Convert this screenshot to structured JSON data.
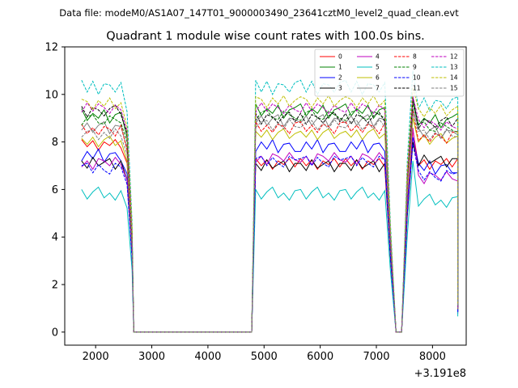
{
  "suptitle": "Data file: modeM0/AS1A07_147T01_9000003490_23641cztM0_level2_quad_clean.evt",
  "chart_data": {
    "type": "line",
    "title": "Quadrant 1 module wise count rates with 100.0s bins.",
    "xlabel": "",
    "ylabel": "",
    "x_offset_label": "+3.191e8",
    "xlim": [
      1450,
      8600
    ],
    "ylim": [
      -0.55,
      12
    ],
    "x_ticks": [
      2000,
      3000,
      4000,
      5000,
      6000,
      7000,
      8000
    ],
    "x_tick_labels": [
      "2000",
      "3000",
      "4000",
      "5000",
      "6000",
      "7000",
      "8000"
    ],
    "y_ticks": [
      0,
      2,
      4,
      6,
      8,
      10,
      12
    ],
    "y_tick_labels": [
      "0",
      "2",
      "4",
      "6",
      "8",
      "10",
      "12"
    ],
    "legend_position": "top-right",
    "segments": [
      {
        "x_start": 1750,
        "x_end": 2450,
        "step": 100
      },
      {
        "x_start": 4850,
        "x_end": 7150,
        "step": 100
      },
      {
        "x_start": 7650,
        "x_end": 8450,
        "step": 100
      }
    ],
    "gap_shape": [
      {
        "x": 2560,
        "factor": 0.9
      },
      {
        "x": 2650,
        "factor": 0.45
      },
      {
        "x": 2680,
        "factor": 0.0
      },
      {
        "x": 4780,
        "factor": 0.0
      },
      {
        "x": 7250,
        "factor": 0.45
      },
      {
        "x": 7350,
        "factor": 0.0
      },
      {
        "x": 7450,
        "factor": 0.0
      },
      {
        "x": 7550,
        "factor": 0.7
      },
      {
        "x": 8450,
        "factor": 0.12
      }
    ],
    "series": [
      {
        "name": "0",
        "color": "#ff0000",
        "dash": "solid",
        "level_a": 7.9,
        "level_b": 7.1,
        "level_c": 7.1,
        "peak": 8.5,
        "wobble": [
          0.2,
          -0.1,
          0.15,
          -0.25,
          0.1,
          -0.05,
          0.2,
          -0.15
        ]
      },
      {
        "name": "1",
        "color": "#008000",
        "dash": "solid",
        "level_a": 9.1,
        "level_b": 9.3,
        "level_c": 8.9,
        "peak": 9.8,
        "wobble": [
          0.3,
          -0.2,
          0.1,
          -0.1,
          0.25,
          -0.3,
          0.05,
          0.15
        ]
      },
      {
        "name": "2",
        "color": "#0000ff",
        "dash": "solid",
        "level_a": 7.4,
        "level_b": 7.8,
        "level_c": 6.9,
        "peak": 8.2,
        "wobble": [
          -0.2,
          0.2,
          -0.1,
          0.3,
          -0.25,
          0.1,
          0.15,
          -0.2
        ]
      },
      {
        "name": "3",
        "color": "#000000",
        "dash": "solid",
        "level_a": 7.1,
        "level_b": 7.0,
        "level_c": 7.2,
        "peak": 8.0,
        "wobble": [
          0.1,
          -0.2,
          0.25,
          -0.1,
          0.05,
          0.2,
          -0.25,
          0.1
        ]
      },
      {
        "name": "4",
        "color": "#bf00bf",
        "dash": "solid",
        "level_a": 7.1,
        "level_b": 7.3,
        "level_c": 6.5,
        "peak": 8.6,
        "wobble": [
          -0.15,
          0.1,
          -0.25,
          0.2,
          0.1,
          -0.1,
          0.25,
          -0.05
        ]
      },
      {
        "name": "5",
        "color": "#00bfbf",
        "dash": "solid",
        "level_a": 5.8,
        "level_b": 5.8,
        "level_c": 5.5,
        "peak": 7.2,
        "wobble": [
          0.2,
          -0.2,
          0.1,
          0.3,
          -0.15,
          0.05,
          -0.25,
          0.15
        ]
      },
      {
        "name": "6",
        "color": "#bfbf00",
        "dash": "solid",
        "level_a": 8.0,
        "level_b": 8.3,
        "level_c": 8.1,
        "peak": 9.0,
        "wobble": [
          0.15,
          -0.1,
          0.2,
          -0.2,
          0.1,
          0.25,
          -0.15,
          0.05
        ]
      },
      {
        "name": "7",
        "color": "#7f7f7f",
        "dash": "solid",
        "level_a": 8.6,
        "level_b": 8.9,
        "level_c": 8.4,
        "peak": 9.4,
        "wobble": [
          -0.1,
          0.2,
          -0.2,
          0.1,
          0.25,
          -0.25,
          0.1,
          0.05
        ]
      },
      {
        "name": "8",
        "color": "#ff0000",
        "dash": "dashed",
        "level_a": 8.5,
        "level_b": 8.6,
        "level_c": 8.2,
        "peak": 9.3,
        "wobble": [
          0.25,
          -0.15,
          0.1,
          -0.2,
          0.15,
          0.05,
          -0.25,
          0.2
        ]
      },
      {
        "name": "9",
        "color": "#008000",
        "dash": "dashed",
        "level_a": 8.9,
        "level_b": 9.1,
        "level_c": 8.6,
        "peak": 9.6,
        "wobble": [
          -0.2,
          0.15,
          0.25,
          -0.1,
          -0.15,
          0.2,
          0.05,
          -0.1
        ]
      },
      {
        "name": "10",
        "color": "#0000ff",
        "dash": "dashed",
        "level_a": 6.9,
        "level_b": 7.2,
        "level_c": 6.6,
        "peak": 7.9,
        "wobble": [
          0.1,
          0.2,
          -0.2,
          0.15,
          -0.1,
          -0.25,
          0.2,
          0.05
        ]
      },
      {
        "name": "11",
        "color": "#000000",
        "dash": "dashed",
        "level_a": 9.3,
        "level_b": 9.0,
        "level_c": 8.8,
        "peak": 9.9,
        "wobble": [
          0.2,
          -0.25,
          0.15,
          0.05,
          -0.2,
          0.1,
          0.25,
          -0.15
        ]
      },
      {
        "name": "12",
        "color": "#bf00bf",
        "dash": "dashed",
        "level_a": 9.4,
        "level_b": 9.4,
        "level_c": 8.7,
        "peak": 9.9,
        "wobble": [
          -0.15,
          0.25,
          -0.1,
          0.2,
          0.05,
          -0.2,
          0.15,
          -0.05
        ]
      },
      {
        "name": "13",
        "color": "#00bfbf",
        "dash": "dashed",
        "level_a": 10.3,
        "level_b": 10.3,
        "level_c": 9.6,
        "peak": 11.0,
        "wobble": [
          0.3,
          -0.2,
          0.25,
          -0.3,
          0.15,
          0.1,
          -0.2,
          0.2
        ]
      },
      {
        "name": "14",
        "color": "#bfbf00",
        "dash": "dashed",
        "level_a": 9.6,
        "level_b": 9.7,
        "level_c": 9.3,
        "peak": 10.3,
        "wobble": [
          0.2,
          0.1,
          -0.25,
          0.15,
          -0.1,
          0.25,
          -0.2,
          0.05
        ]
      },
      {
        "name": "15",
        "color": "#7f7f7f",
        "dash": "dashed",
        "level_a": 8.3,
        "level_b": 8.7,
        "level_c": 8.3,
        "peak": 9.2,
        "wobble": [
          -0.1,
          0.15,
          0.2,
          -0.2,
          0.1,
          -0.15,
          0.25,
          -0.05
        ]
      }
    ]
  }
}
